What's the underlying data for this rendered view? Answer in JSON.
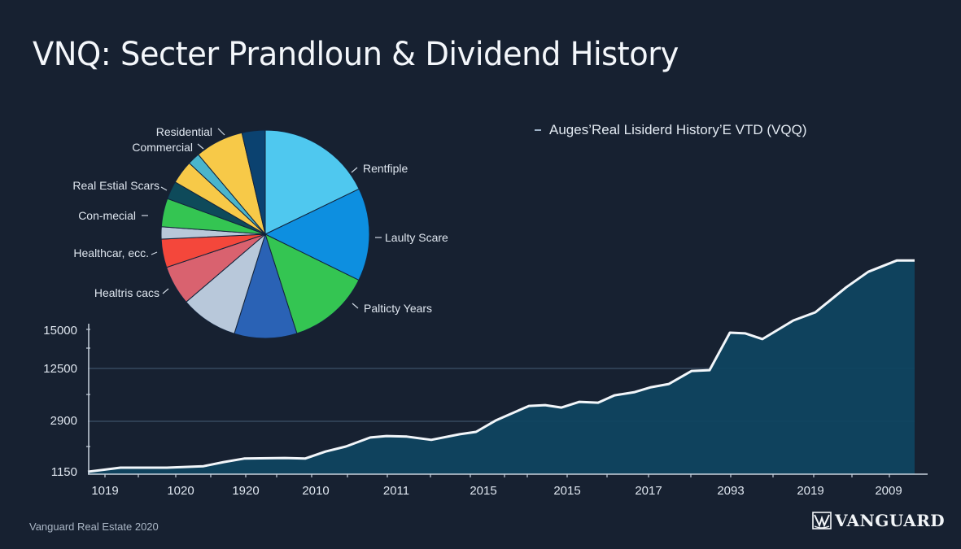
{
  "title": "VNQ: Secter Prandloun & Dividend History",
  "legend": {
    "label": "Auges’Real Lisiderd History’E VTD (VQQ)"
  },
  "footer": {
    "source": "Vanguard Real Estate 2020",
    "brand": "VANGUARD",
    "brand_icon": "vanguard-ship-logo-icon"
  },
  "colors": {
    "background": "#172131",
    "area_fill": "#0f4460",
    "line": "#f2f6fa",
    "gridline": "#3d5268"
  },
  "chart_data": [
    {
      "type": "pie",
      "title": "",
      "labels": [
        "Rentfiple",
        "Laulty Scare",
        "Palticty Years",
        "",
        "",
        "Healtris cacs",
        "Healthcar, ecc.",
        "",
        "Con-mecial",
        "Real Estial Scars",
        "",
        "Commercial",
        "Residential",
        ""
      ],
      "values": [
        17.8,
        14.4,
        12.8,
        9.7,
        8.9,
        6.1,
        4.4,
        1.9,
        4.4,
        2.8,
        3.6,
        1.9,
        7.5,
        3.6
      ],
      "colors": [
        "#4fc8ef",
        "#0d8fe0",
        "#34c552",
        "#2a62b5",
        "#b8c8da",
        "#d9626f",
        "#f4473b",
        "#b8c8da",
        "#34c552",
        "#0e4a5a",
        "#f7c948",
        "#4ab5cc",
        "#f7c948",
        "#0b4270"
      ],
      "start_angle_deg": 0,
      "direction": "clockwise",
      "label_positions": {
        "Residential": "top-left",
        "Commercial": "top-left",
        "Real Estial Scars": "left",
        "Con-mecial": "left",
        "Healthcar, ecc.": "left",
        "Healtris cacs": "bottom-left",
        "Rentfiple": "top-right",
        "Laulty Scare": "right",
        "Palticty Years": "bottom-right"
      }
    },
    {
      "type": "area",
      "title": "Auges’Real Lisiderd History’E VTD (VQQ)",
      "xlabel": "",
      "ylabel": "",
      "x_tick_labels": [
        "1019",
        "1020",
        "1920",
        "2010",
        "2011",
        "2015",
        "2015",
        "2017",
        "2093",
        "2019",
        "2009"
      ],
      "y_tick_labels": [
        "1150",
        "2900",
        "12500",
        "15000"
      ],
      "grid": "horizontal",
      "legend_position": "top-right",
      "points_px_note": "values estimated by interpolating between the labeled y ticks",
      "x": [
        0,
        1,
        2,
        3,
        4,
        5,
        6,
        7,
        8,
        9,
        10,
        11,
        12,
        13,
        14,
        15,
        16,
        17,
        18,
        19,
        20,
        21,
        22,
        23,
        24,
        25,
        26,
        27,
        28,
        29,
        30,
        31,
        32,
        33,
        34,
        35,
        36
      ],
      "values": [
        1150,
        1290,
        1290,
        1340,
        1480,
        1600,
        1620,
        1600,
        1840,
        2010,
        2320,
        2370,
        2350,
        2240,
        2430,
        2510,
        2960,
        5580,
        5730,
        5280,
        6330,
        6180,
        7530,
        8130,
        9030,
        9630,
        12030,
        12180,
        14840,
        14790,
        14420,
        15640,
        16170,
        17810,
        18820,
        19560,
        19560
      ]
    }
  ]
}
